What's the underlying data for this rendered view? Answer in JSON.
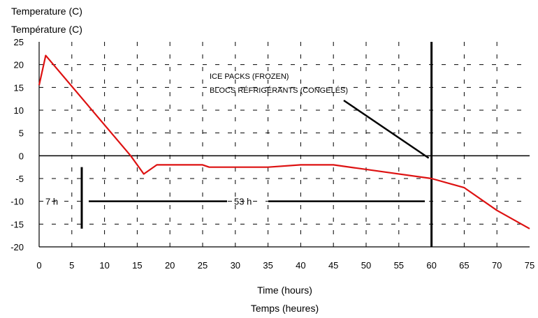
{
  "chart_data": {
    "type": "line",
    "ylabel_en": "Temperature (C)",
    "ylabel_fr": "Température (C)",
    "xlabel_en": "Time (hours)",
    "xlabel_fr": "Temps (heures)",
    "xlim": [
      0,
      75
    ],
    "ylim": [
      -20,
      25
    ],
    "xticks": [
      0,
      5,
      10,
      15,
      20,
      25,
      30,
      35,
      40,
      45,
      50,
      55,
      60,
      65,
      70,
      75
    ],
    "yticks": [
      25,
      20,
      15,
      10,
      5,
      0,
      -5,
      -10,
      -15,
      -20
    ],
    "grid": "dashed",
    "series": [
      {
        "color": "#dd1111",
        "x": [
          0,
          1,
          14,
          16,
          18,
          25,
          26,
          35,
          40,
          45,
          60,
          65,
          70,
          75
        ],
        "y": [
          15.5,
          22,
          0,
          -4,
          -2,
          -2,
          -2.5,
          -2.5,
          -2,
          -2,
          -5,
          -7,
          -12,
          -16
        ]
      }
    ],
    "annotations": {
      "ice_packs_en": "ICE PACKS (FROZEN)",
      "ice_packs_fr": "BLOCS RÉFRIGÉRANTS (CONGELÉS)",
      "marker_time": 60,
      "label_7h": "7 h",
      "label_53h": "53 h"
    }
  }
}
